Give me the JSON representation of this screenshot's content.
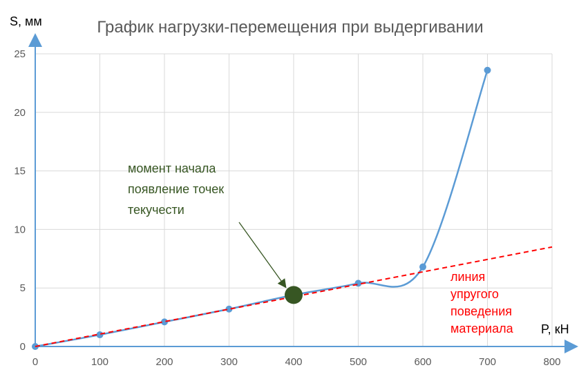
{
  "chart_data": {
    "type": "scatter",
    "title": "График нагрузки-перемещения при выдергивании",
    "xlabel": "P, кН",
    "ylabel": "S, мм",
    "xlim": [
      0,
      800
    ],
    "ylim": [
      0,
      25
    ],
    "xticks": [
      0,
      100,
      200,
      300,
      400,
      500,
      600,
      700,
      800
    ],
    "yticks": [
      0,
      5,
      10,
      15,
      20,
      25
    ],
    "grid": true,
    "series": [
      {
        "style": "smooth-line-with-markers",
        "color": "#5b9bd5",
        "points": [
          {
            "x": 0,
            "y": 0
          },
          {
            "x": 100,
            "y": 1.0
          },
          {
            "x": 200,
            "y": 2.1
          },
          {
            "x": 300,
            "y": 3.2
          },
          {
            "x": 400,
            "y": 4.4
          },
          {
            "x": 500,
            "y": 5.4
          },
          {
            "x": 600,
            "y": 6.8
          },
          {
            "x": 700,
            "y": 23.6
          }
        ]
      },
      {
        "style": "dashed-line",
        "color": "#ff0000",
        "points": [
          {
            "x": 0,
            "y": 0
          },
          {
            "x": 800,
            "y": 8.5
          }
        ]
      }
    ],
    "highlight_point": {
      "x": 400,
      "y": 4.4,
      "color": "#375623"
    },
    "annotations": [
      {
        "id": "yield-start",
        "lines": [
          "момент начала",
          "появление точек",
          "текучести"
        ],
        "color": "#375623",
        "arrow_to": {
          "x": 400,
          "y": 4.4
        }
      },
      {
        "id": "elastic-line",
        "lines": [
          "линия",
          "упругого",
          "поведения",
          "материала"
        ],
        "color": "#ff0000"
      }
    ]
  }
}
